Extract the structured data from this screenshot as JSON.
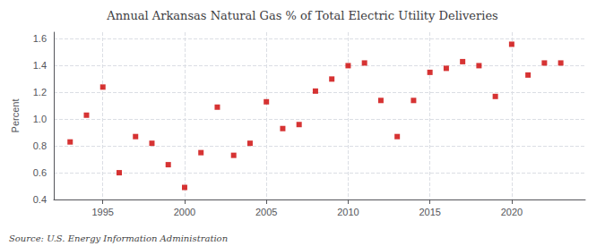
{
  "chart_data": {
    "type": "scatter",
    "title": "Annual Arkansas Natural Gas % of Total Electric Utility Deliveries",
    "ylabel": "Percent",
    "annotations": [
      "Source: U.S. Energy Information Administration"
    ],
    "x": [
      1993,
      1994,
      1995,
      1996,
      1997,
      1998,
      1999,
      2000,
      2001,
      2002,
      2003,
      2004,
      2005,
      2006,
      2007,
      2008,
      2009,
      2010,
      2011,
      2012,
      2013,
      2014,
      2015,
      2016,
      2017,
      2018,
      2019,
      2020,
      2021,
      2022,
      2023
    ],
    "values": [
      0.83,
      1.03,
      1.24,
      0.6,
      0.87,
      0.82,
      0.66,
      0.49,
      0.75,
      1.09,
      0.73,
      0.82,
      1.13,
      0.93,
      0.96,
      1.21,
      1.3,
      1.4,
      1.42,
      1.14,
      0.87,
      1.14,
      1.35,
      1.38,
      1.43,
      1.4,
      1.17,
      1.56,
      1.33,
      1.42,
      1.42
    ],
    "color": "#cc0000",
    "marker": "square",
    "xlim": [
      1992.0,
      2024.5
    ],
    "ylim": [
      0.4,
      1.65
    ],
    "xticks": [
      1995,
      2000,
      2005,
      2010,
      2015,
      2020
    ],
    "yticks": [
      0.4,
      0.6,
      0.8,
      {
        "value": 1,
        "label": "1.0"
      },
      1.2,
      1.4,
      1.6
    ],
    "grid": true
  }
}
